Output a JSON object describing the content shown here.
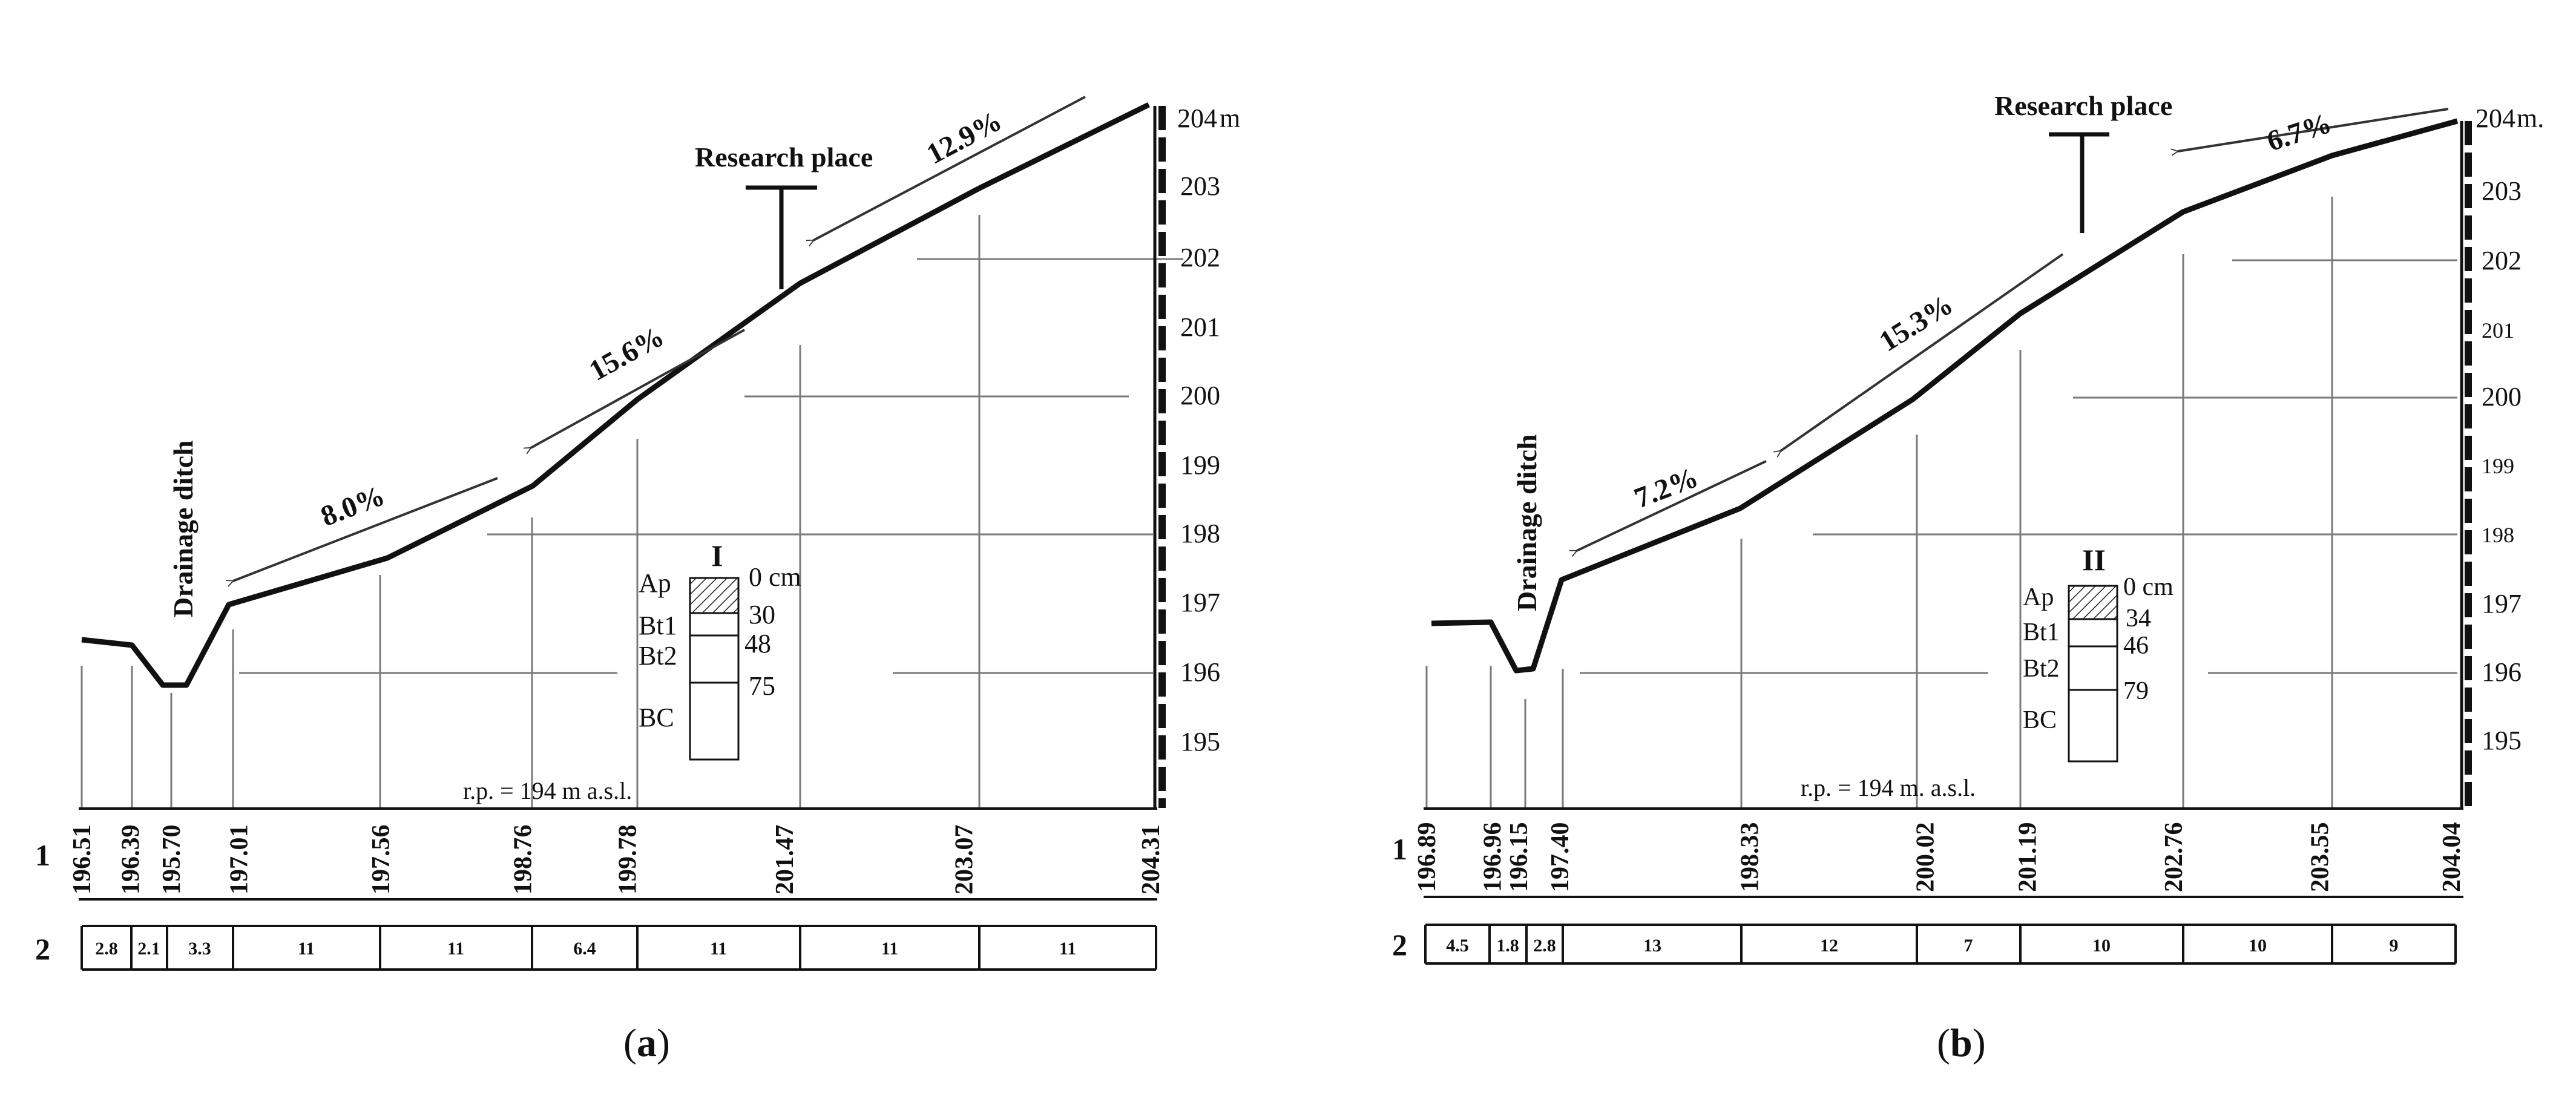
{
  "panels": [
    {
      "id": "a",
      "caption_open": "(",
      "caption_letter": "a",
      "caption_close": ")",
      "research_label": "Research place",
      "ditch_label": "Drainage ditch",
      "unit_label": "m",
      "rp_label": "r.p. = 194 m a.s.l.",
      "row_labels": [
        "1",
        "2"
      ],
      "slopes": [
        "12.9%",
        "15.6%",
        "8.0%"
      ],
      "ticks": [
        "204",
        "203",
        "202",
        "201",
        "200",
        "199",
        "198",
        "197",
        "196",
        "195"
      ],
      "profile_x": [
        0,
        3.25,
        6.0,
        10.5,
        20.0,
        29.5,
        36.5,
        47.0,
        59.0,
        71.5
      ],
      "elevations": [
        "196.51",
        "196.39",
        "195.70",
        "197.01",
        "197.56",
        "198.76",
        "199.78",
        "201.47",
        "203.07",
        "204.31"
      ],
      "distances": [
        "2.8",
        "2.1",
        "3.3",
        "11",
        "11",
        "6.4",
        "11",
        "11",
        "11"
      ],
      "soil": {
        "id": "I",
        "horizons": [
          "Ap",
          "Bt1",
          "Bt2",
          "BC"
        ],
        "depths": [
          "0 cm",
          "30",
          "48",
          "75"
        ]
      }
    },
    {
      "id": "b",
      "caption_open": "(",
      "caption_letter": "b",
      "caption_close": ")",
      "research_label": "Research place",
      "ditch_label": "Drainage ditch",
      "unit_label": "m.",
      "rp_label": "r.p. = 194 m. a.s.l.",
      "row_labels": [
        "1",
        "2"
      ],
      "slopes": [
        "6.7%",
        "15.3%",
        "7.2%"
      ],
      "ticks": [
        "204",
        "203",
        "202",
        "201",
        "200",
        "199",
        "198",
        "197",
        "196",
        "195"
      ],
      "profile_x": [
        0,
        4.5,
        6.3,
        9.1,
        22.1,
        34.1,
        41.1,
        51.1,
        61.1,
        70.1
      ],
      "elevations": [
        "196.89",
        "196.96",
        "196.15",
        "197.40",
        "198.33",
        "200.02",
        "201.19",
        "202.76",
        "203.55",
        "204.04"
      ],
      "distances": [
        "4.5",
        "1.8",
        "2.8",
        "13",
        "12",
        "7",
        "10",
        "10",
        "9"
      ],
      "soil": {
        "id": "II",
        "horizons": [
          "Ap",
          "Bt1",
          "Bt2",
          "BC"
        ],
        "depths": [
          "0 cm",
          "34",
          "46",
          "79"
        ]
      }
    }
  ],
  "colors": {
    "line": "#111111",
    "grid": "#7a7a7a",
    "hatch": "#222222"
  }
}
